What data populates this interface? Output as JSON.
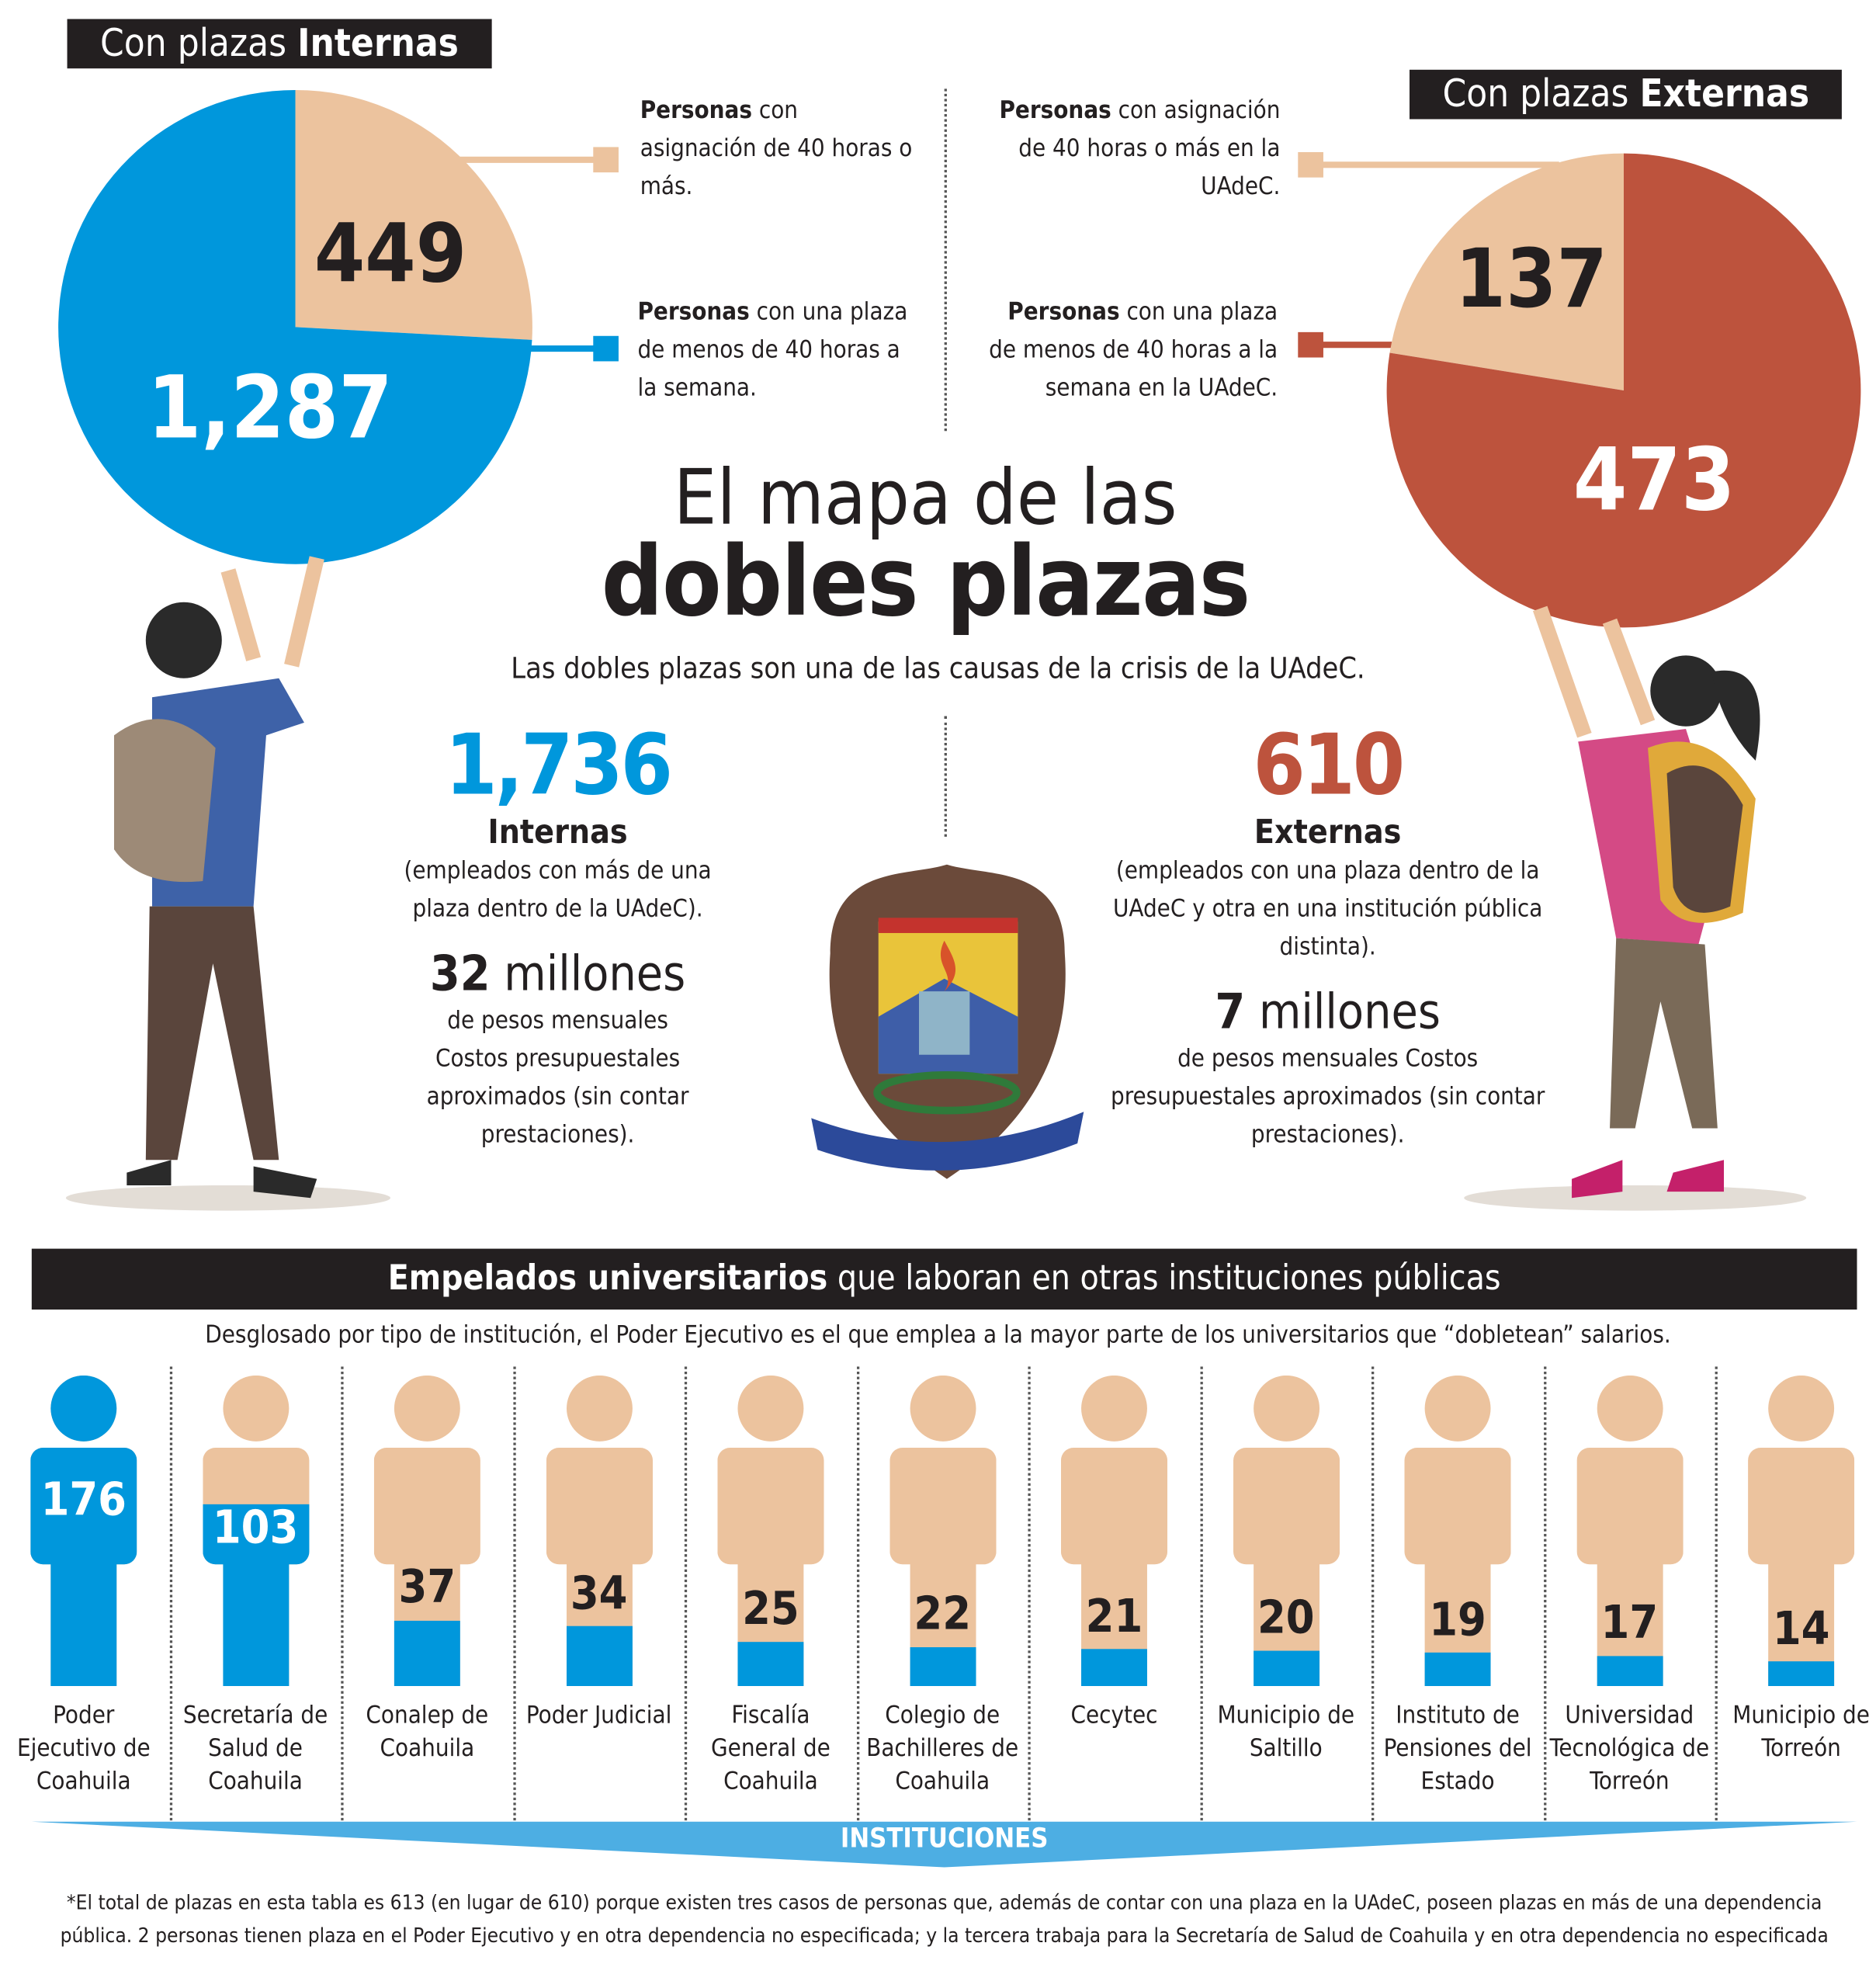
{
  "colors": {
    "blue": "#0097dc",
    "tan": "#ecc39e",
    "red": "#bd533d",
    "dark": "#231f20"
  },
  "left": {
    "tag_light": "Con plazas ",
    "tag_bold": "Internas",
    "legend": [
      {
        "bold": "Personas",
        "text": " con asignación de 40 horas o más."
      },
      {
        "bold": "Personas",
        "text": " con una plaza de menos de 40 horas a la semana."
      }
    ]
  },
  "right": {
    "tag_light": "Con plazas ",
    "tag_bold": "Externas",
    "legend": [
      {
        "bold": "Personas",
        "text": " con asignación de 40 horas o más en la UAdeC."
      },
      {
        "bold": "Personas",
        "text": " con una plaza de menos de 40 horas a la semana en la UAdeC."
      }
    ]
  },
  "title": {
    "line1": "El mapa de las",
    "line2": "dobles plazas",
    "subtitle": "Las dobles plazas son una de las causas de la crisis de la UAdeC."
  },
  "internas": {
    "total": "1,736",
    "label": "Internas",
    "desc": "(empleados con más de una plaza dentro de la UAdeC).",
    "amount": "32",
    "unit": " millones",
    "cost": "de pesos mensuales Costos presupuestales aproximados (sin contar prestaciones)."
  },
  "externas": {
    "total": "610",
    "label": "Externas",
    "desc": "(empleados con una plaza dentro de la UAdeC y otra en una institución pública distinta).",
    "amount": "7",
    "unit": " millones",
    "cost": "de pesos mensuales Costos presupuestales aproximados (sin contar prestaciones)."
  },
  "section": {
    "title_bold": "Empelados universitarios",
    "title_rest": " que laboran en otras instituciones públicas",
    "subtitle": "Desglosado por tipo de institución, el Poder Ejecutivo es el que emplea a la mayor parte de los universitarios que “dobletean” salarios.",
    "axis": "INSTITUCIONES"
  },
  "footnote": "*El total de plazas en esta tabla es 613 (en lugar de 610) porque existen tres casos de personas que, además de contar con una plaza en la UAdeC, poseen plazas en más de una dependencia pública. 2 personas tienen plaza en el Poder Ejecutivo y en otra dependencia no especificada; y la tercera trabaja para la Secretaría de Salud de Coahuila y en otra dependencia no especificada",
  "chart_data": [
    {
      "type": "pie",
      "title": "Con plazas Internas",
      "slices": [
        {
          "label": "Personas con asignación de 40 horas o más.",
          "value": 449,
          "display": "449",
          "color": "#ecc39e"
        },
        {
          "label": "Personas con una plaza de menos de 40 horas a la semana.",
          "value": 1287,
          "display": "1,287",
          "color": "#0097dc"
        }
      ]
    },
    {
      "type": "pie",
      "title": "Con plazas Externas",
      "slices": [
        {
          "label": "Personas con asignación de 40 horas o más en la UAdeC.",
          "value": 137,
          "display": "137",
          "color": "#ecc39e"
        },
        {
          "label": "Personas con una plaza de menos de 40 horas a la semana en la UAdeC.",
          "value": 473,
          "display": "473",
          "color": "#bd533d"
        }
      ]
    },
    {
      "type": "bar",
      "title": "Empelados universitarios que laboran en otras instituciones públicas",
      "xlabel": "INSTITUCIONES",
      "max": 176,
      "categories": [
        "Poder Ejecutivo de Coahuila",
        "Secretaría de Salud de Coahuila",
        "Conalep de Coahuila",
        "Poder Judicial",
        "Fiscalía General de Coahuila",
        "Colegio de Bachilleres de Coahuila",
        "Cecytec",
        "Municipio de Saltillo",
        "Instituto de Pensiones del Estado",
        "Universidad Tecnológica de Torreón",
        "Municipio de Torreón"
      ],
      "values": [
        176,
        103,
        37,
        34,
        25,
        22,
        21,
        20,
        19,
        17,
        14
      ]
    }
  ]
}
